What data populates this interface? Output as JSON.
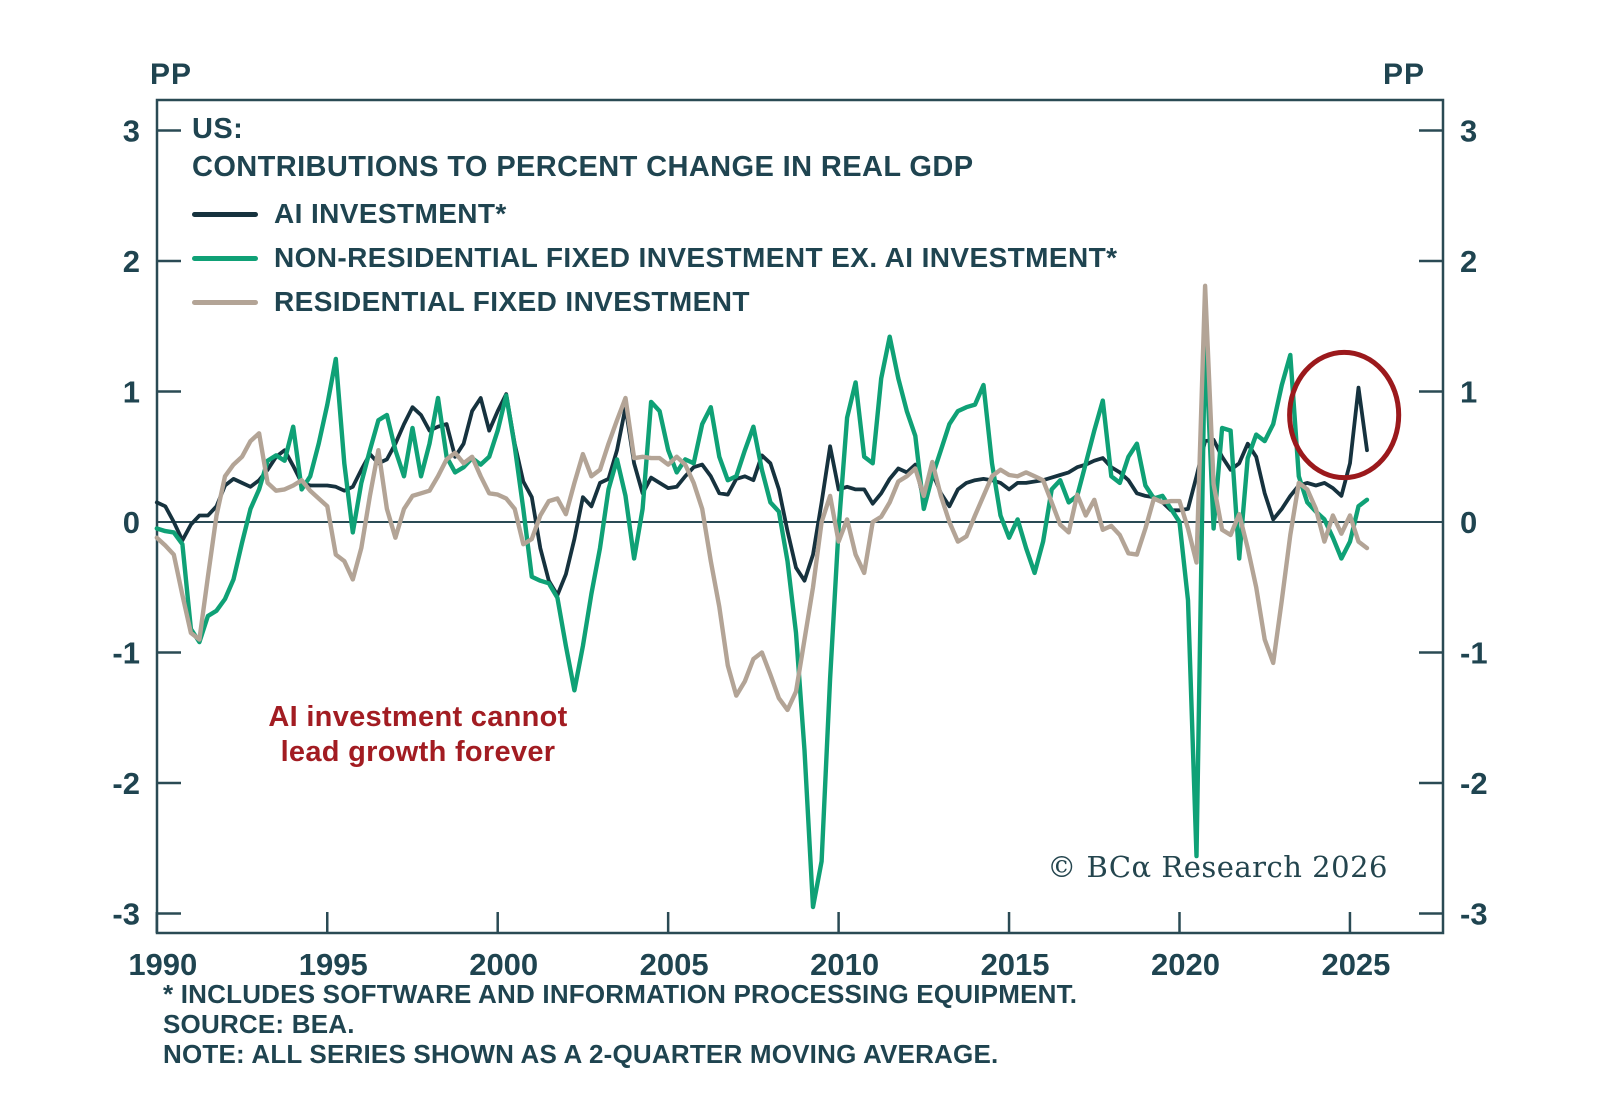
{
  "chart": {
    "unit_label_left": "PP",
    "unit_label_right": "PP",
    "title_line1": "US:",
    "title_line2": "CONTRIBUTIONS TO PERCENT CHANGE IN REAL GDP",
    "annotation": {
      "line1": "AI investment cannot",
      "line2": "lead growth forever",
      "color": "#a21c22"
    },
    "credit": "© BCα Research 2026",
    "footnotes": [
      "* INCLUDES SOFTWARE AND INFORMATION PROCESSING EQUIPMENT.",
      "SOURCE: BEA.",
      "NOTE: ALL SERIES SHOWN AS A 2-QUARTER MOVING AVERAGE."
    ],
    "colors": {
      "text": "#1f4450",
      "axis": "#2a4a54",
      "background": "#ffffff"
    }
  },
  "chart_data": {
    "type": "line",
    "title": "US: CONTRIBUTIONS TO PERCENT CHANGE IN REAL GDP",
    "xlabel": "",
    "ylabel": "PP",
    "ylim": [
      -3,
      3
    ],
    "xlim": [
      1990,
      2027.7
    ],
    "x_ticks": [
      1990,
      1995,
      2000,
      2005,
      2010,
      2015,
      2020,
      2025
    ],
    "y_ticks": [
      -3,
      -2,
      -1,
      0,
      1,
      2,
      3
    ],
    "grid": false,
    "legend_position": "top-left-inside",
    "note": "All series shown as a 2-quarter moving average; values are contributions to percent change in real GDP, percentage points",
    "x_start": 1990,
    "x_step": 0.25,
    "series": [
      {
        "name": "AI INVESTMENT*",
        "color": "#16323e",
        "width": 3.8,
        "values": [
          0.15,
          0.12,
          0.0,
          -0.14,
          -0.02,
          0.05,
          0.05,
          0.12,
          0.28,
          0.33,
          0.3,
          0.27,
          0.32,
          0.4,
          0.5,
          0.55,
          0.43,
          0.3,
          0.28,
          0.28,
          0.28,
          0.27,
          0.24,
          0.27,
          0.4,
          0.52,
          0.45,
          0.48,
          0.6,
          0.75,
          0.88,
          0.82,
          0.7,
          0.73,
          0.75,
          0.5,
          0.6,
          0.85,
          0.95,
          0.7,
          0.85,
          0.98,
          0.6,
          0.31,
          0.19,
          -0.2,
          -0.45,
          -0.56,
          -0.4,
          -0.13,
          0.19,
          0.12,
          0.3,
          0.33,
          0.55,
          0.88,
          0.45,
          0.22,
          0.34,
          0.3,
          0.26,
          0.27,
          0.35,
          0.42,
          0.44,
          0.35,
          0.22,
          0.21,
          0.33,
          0.35,
          0.32,
          0.51,
          0.45,
          0.25,
          -0.07,
          -0.35,
          -0.45,
          -0.25,
          0.15,
          0.58,
          0.25,
          0.27,
          0.25,
          0.25,
          0.14,
          0.22,
          0.33,
          0.41,
          0.38,
          0.44,
          0.16,
          0.38,
          0.22,
          0.12,
          0.25,
          0.3,
          0.32,
          0.33,
          0.32,
          0.3,
          0.25,
          0.3,
          0.3,
          0.31,
          0.32,
          0.34,
          0.36,
          0.38,
          0.42,
          0.44,
          0.47,
          0.49,
          0.42,
          0.38,
          0.32,
          0.22,
          0.2,
          0.19,
          0.15,
          0.09,
          0.09,
          0.1,
          0.35,
          0.62,
          0.63,
          0.5,
          0.4,
          0.45,
          0.6,
          0.5,
          0.22,
          0.02,
          0.1,
          0.2,
          0.28,
          0.3,
          0.28,
          0.3,
          0.26,
          0.2,
          0.45,
          1.03,
          0.55
        ]
      },
      {
        "name": "NON-RESIDENTIAL FIXED INVESTMENT EX. AI INVESTMENT*",
        "color": "#0fa176",
        "width": 4.4,
        "values": [
          -0.05,
          -0.07,
          -0.08,
          -0.17,
          -0.82,
          -0.92,
          -0.72,
          -0.68,
          -0.59,
          -0.44,
          -0.16,
          0.1,
          0.25,
          0.47,
          0.51,
          0.47,
          0.73,
          0.25,
          0.35,
          0.6,
          0.9,
          1.25,
          0.45,
          -0.08,
          0.3,
          0.55,
          0.78,
          0.82,
          0.55,
          0.35,
          0.72,
          0.35,
          0.6,
          0.95,
          0.5,
          0.38,
          0.42,
          0.49,
          0.44,
          0.5,
          0.7,
          0.97,
          0.58,
          0.1,
          -0.42,
          -0.45,
          -0.47,
          -0.58,
          -0.95,
          -1.29,
          -0.95,
          -0.55,
          -0.2,
          0.25,
          0.48,
          0.2,
          -0.28,
          0.1,
          0.92,
          0.85,
          0.55,
          0.38,
          0.48,
          0.45,
          0.75,
          0.88,
          0.5,
          0.32,
          0.35,
          0.55,
          0.73,
          0.4,
          0.15,
          0.08,
          -0.3,
          -0.85,
          -1.75,
          -2.95,
          -2.6,
          -1.2,
          -0.05,
          0.8,
          1.07,
          0.5,
          0.45,
          1.1,
          1.42,
          1.1,
          0.85,
          0.66,
          0.1,
          0.35,
          0.55,
          0.75,
          0.85,
          0.88,
          0.9,
          1.05,
          0.45,
          0.05,
          -0.12,
          0.02,
          -0.2,
          -0.39,
          -0.15,
          0.25,
          0.32,
          0.15,
          0.2,
          0.45,
          0.7,
          0.93,
          0.35,
          0.3,
          0.5,
          0.6,
          0.28,
          0.18,
          0.2,
          0.1,
          0.0,
          -0.6,
          -2.56,
          1.46,
          -0.05,
          0.72,
          0.7,
          -0.28,
          0.49,
          0.67,
          0.62,
          0.75,
          1.05,
          1.28,
          0.35,
          0.15,
          0.08,
          0.02,
          -0.12,
          -0.28,
          -0.15,
          0.12,
          0.17
        ]
      },
      {
        "name": "RESIDENTIAL FIXED INVESTMENT",
        "color": "#b3a496",
        "width": 4.4,
        "values": [
          -0.12,
          -0.18,
          -0.25,
          -0.56,
          -0.85,
          -0.9,
          -0.42,
          0.05,
          0.35,
          0.44,
          0.5,
          0.62,
          0.68,
          0.3,
          0.24,
          0.25,
          0.28,
          0.32,
          0.24,
          0.18,
          0.12,
          -0.25,
          -0.3,
          -0.44,
          -0.2,
          0.2,
          0.55,
          0.1,
          -0.12,
          0.1,
          0.2,
          0.22,
          0.24,
          0.35,
          0.48,
          0.53,
          0.45,
          0.5,
          0.35,
          0.22,
          0.21,
          0.18,
          0.1,
          -0.17,
          -0.13,
          0.05,
          0.16,
          0.18,
          0.06,
          0.3,
          0.52,
          0.35,
          0.4,
          0.6,
          0.78,
          0.95,
          0.49,
          0.5,
          0.49,
          0.49,
          0.44,
          0.5,
          0.44,
          0.3,
          0.1,
          -0.3,
          -0.65,
          -1.1,
          -1.33,
          -1.22,
          -1.05,
          -1.0,
          -1.17,
          -1.35,
          -1.44,
          -1.3,
          -0.9,
          -0.5,
          0.0,
          0.2,
          -0.15,
          0.02,
          -0.25,
          -0.39,
          0.0,
          0.04,
          0.15,
          0.31,
          0.35,
          0.41,
          0.2,
          0.46,
          0.2,
          0.0,
          -0.15,
          -0.11,
          0.05,
          0.2,
          0.35,
          0.4,
          0.36,
          0.35,
          0.38,
          0.35,
          0.32,
          0.15,
          -0.02,
          -0.08,
          0.21,
          0.05,
          0.17,
          -0.06,
          -0.03,
          -0.1,
          -0.24,
          -0.25,
          -0.05,
          0.18,
          0.15,
          0.16,
          0.16,
          -0.05,
          -0.31,
          1.81,
          0.29,
          -0.06,
          -0.1,
          0.06,
          -0.2,
          -0.5,
          -0.9,
          -1.08,
          -0.6,
          -0.1,
          0.3,
          0.25,
          0.1,
          -0.15,
          0.05,
          -0.09,
          0.05,
          -0.15,
          -0.2
        ]
      }
    ],
    "highlight_circle": {
      "cx_year": 2024.83,
      "cy_value": 0.82,
      "rx_years": 1.6,
      "ry_value": 0.48,
      "color": "#9b191c",
      "meaning": "circles the 2025 spike in AI investment contribution (~1.0 pp)"
    }
  }
}
